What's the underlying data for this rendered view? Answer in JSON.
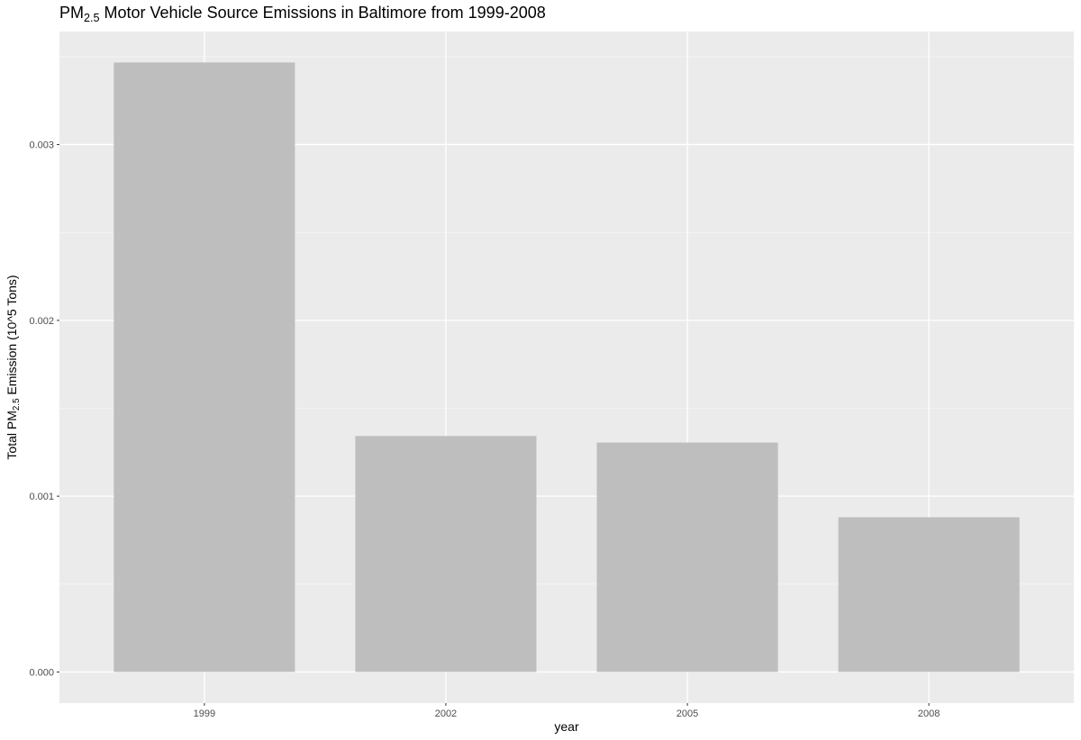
{
  "chart_data": {
    "type": "bar",
    "title": {
      "pre": "PM",
      "sub": "2.5",
      "post": " Motor Vehicle Source Emissions in Baltimore from 1999-2008"
    },
    "xlabel": "year",
    "ylabel": {
      "pre": "Total PM",
      "sub": "2.5",
      "post": " Emission (10^5 Tons)"
    },
    "categories": [
      "1999",
      "2002",
      "2005",
      "2008"
    ],
    "values": [
      0.003467,
      0.001342,
      0.001305,
      0.00088
    ],
    "ylim": [
      -0.000177,
      0.003643
    ],
    "yticks": [
      0.0,
      0.001,
      0.002,
      0.003
    ],
    "ytick_labels": [
      "0.000",
      "0.001",
      "0.002",
      "0.003"
    ],
    "grid": true,
    "legend": "none",
    "colors": {
      "bar": "#bebebe",
      "panel": "#ebebeb",
      "grid_major": "#ffffff",
      "grid_minor": "#f5f5f5"
    }
  }
}
